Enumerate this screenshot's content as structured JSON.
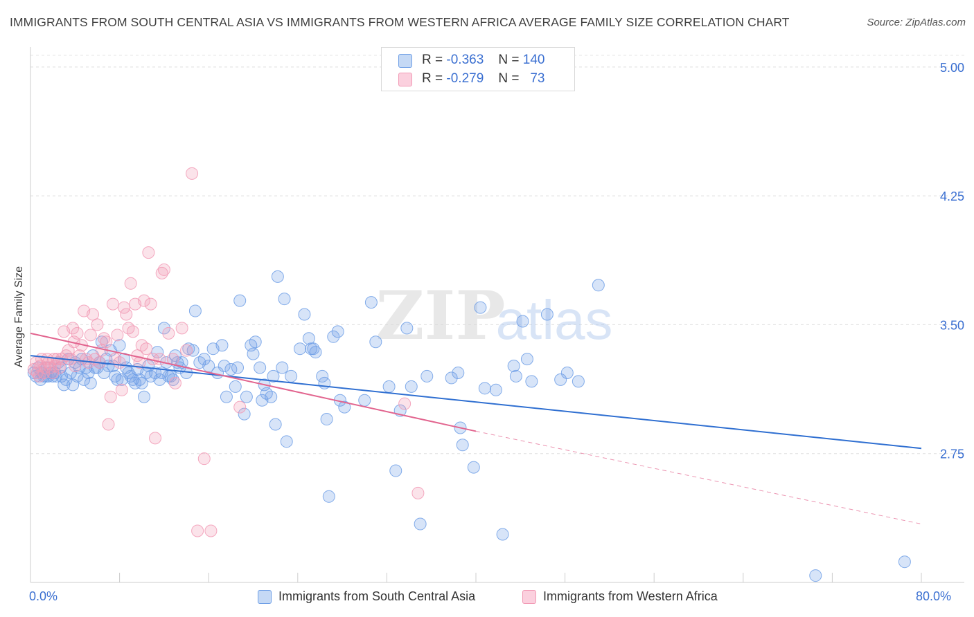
{
  "title": "IMMIGRANTS FROM SOUTH CENTRAL ASIA VS IMMIGRANTS FROM WESTERN AFRICA AVERAGE FAMILY SIZE CORRELATION CHART",
  "source": "Source: ZipAtlas.com",
  "watermark": {
    "zip": "ZIP",
    "atlas": "atlas"
  },
  "legend": {
    "rows": [
      {
        "r_label": "R =",
        "r_value": "-0.363",
        "n_label": "N =",
        "n_value": "140",
        "color": "#a9c6f0"
      },
      {
        "r_label": "R =",
        "r_value": "-0.279",
        "n_label": "N =",
        "n_value": "73",
        "color": "#f5b3c8"
      }
    ]
  },
  "chart_data": {
    "type": "scatter",
    "ylabel": "Average Family Size",
    "xlim": [
      0,
      80
    ],
    "ylim": [
      2.0,
      5.1
    ],
    "x_tick_labels": [
      "0.0%",
      "80.0%"
    ],
    "y_ticks": [
      5.0,
      4.25,
      3.5,
      2.75
    ],
    "y_tick_labels": [
      "5.00",
      "4.25",
      "3.50",
      "2.75"
    ],
    "grid": true,
    "legend_position": "top-center",
    "series": [
      {
        "name": "Immigrants from South Central Asia",
        "color": "#6f9fe6",
        "line_color": "#2f6fd1",
        "trend": {
          "x0": 0,
          "y0": 3.32,
          "x1": 80,
          "y1": 2.78
        },
        "points": [
          [
            0.3,
            3.22
          ],
          [
            0.5,
            3.2
          ],
          [
            0.7,
            3.25
          ],
          [
            0.9,
            3.18
          ],
          [
            1.0,
            3.22
          ],
          [
            1.2,
            3.2
          ],
          [
            1.4,
            3.2
          ],
          [
            1.5,
            3.25
          ],
          [
            1.6,
            3.2
          ],
          [
            1.8,
            3.22
          ],
          [
            2.0,
            3.2
          ],
          [
            2.2,
            3.22
          ],
          [
            2.3,
            3.2
          ],
          [
            2.5,
            3.28
          ],
          [
            2.7,
            3.25
          ],
          [
            2.8,
            3.2
          ],
          [
            3.0,
            3.15
          ],
          [
            3.2,
            3.18
          ],
          [
            3.4,
            3.3
          ],
          [
            3.6,
            3.22
          ],
          [
            3.8,
            3.15
          ],
          [
            4.0,
            3.28
          ],
          [
            4.2,
            3.2
          ],
          [
            4.4,
            3.25
          ],
          [
            4.6,
            3.3
          ],
          [
            4.8,
            3.18
          ],
          [
            5.0,
            3.25
          ],
          [
            5.2,
            3.22
          ],
          [
            5.4,
            3.16
          ],
          [
            5.6,
            3.32
          ],
          [
            5.8,
            3.25
          ],
          [
            6.0,
            3.25
          ],
          [
            6.2,
            3.28
          ],
          [
            6.4,
            3.4
          ],
          [
            6.6,
            3.22
          ],
          [
            6.8,
            3.3
          ],
          [
            7.0,
            3.26
          ],
          [
            7.2,
            3.35
          ],
          [
            7.4,
            3.26
          ],
          [
            7.6,
            3.2
          ],
          [
            7.8,
            3.18
          ],
          [
            8.0,
            3.38
          ],
          [
            8.2,
            3.18
          ],
          [
            8.4,
            3.3
          ],
          [
            8.6,
            3.25
          ],
          [
            8.8,
            3.22
          ],
          [
            9.0,
            3.2
          ],
          [
            9.2,
            3.18
          ],
          [
            9.4,
            3.16
          ],
          [
            9.6,
            3.24
          ],
          [
            9.8,
            3.18
          ],
          [
            10.0,
            3.16
          ],
          [
            10.2,
            3.08
          ],
          [
            10.4,
            3.22
          ],
          [
            10.6,
            3.26
          ],
          [
            10.8,
            3.2
          ],
          [
            11.2,
            3.22
          ],
          [
            11.4,
            3.34
          ],
          [
            11.6,
            3.18
          ],
          [
            11.8,
            3.22
          ],
          [
            12.0,
            3.48
          ],
          [
            12.2,
            3.28
          ],
          [
            12.4,
            3.2
          ],
          [
            12.6,
            3.2
          ],
          [
            12.8,
            3.18
          ],
          [
            13.0,
            3.32
          ],
          [
            13.2,
            3.28
          ],
          [
            13.4,
            3.25
          ],
          [
            13.6,
            3.28
          ],
          [
            14.0,
            3.22
          ],
          [
            14.2,
            3.36
          ],
          [
            14.6,
            3.35
          ],
          [
            14.8,
            3.58
          ],
          [
            15.2,
            3.28
          ],
          [
            15.6,
            3.3
          ],
          [
            16.0,
            3.26
          ],
          [
            16.4,
            3.36
          ],
          [
            16.8,
            3.22
          ],
          [
            17.2,
            3.38
          ],
          [
            17.4,
            3.26
          ],
          [
            17.6,
            3.08
          ],
          [
            18.0,
            3.24
          ],
          [
            18.4,
            3.14
          ],
          [
            18.6,
            3.25
          ],
          [
            18.8,
            3.64
          ],
          [
            19.2,
            2.98
          ],
          [
            19.4,
            3.08
          ],
          [
            19.8,
            3.38
          ],
          [
            20.0,
            3.33
          ],
          [
            20.2,
            3.4
          ],
          [
            20.6,
            3.25
          ],
          [
            20.8,
            3.06
          ],
          [
            21.0,
            3.15
          ],
          [
            21.2,
            3.1
          ],
          [
            21.6,
            3.08
          ],
          [
            21.8,
            3.2
          ],
          [
            22.0,
            2.92
          ],
          [
            22.2,
            3.78
          ],
          [
            22.6,
            3.25
          ],
          [
            22.8,
            3.65
          ],
          [
            23.0,
            2.82
          ],
          [
            23.4,
            3.2
          ],
          [
            24.2,
            3.36
          ],
          [
            24.6,
            3.56
          ],
          [
            25.0,
            3.42
          ],
          [
            25.2,
            3.36
          ],
          [
            25.4,
            3.36
          ],
          [
            25.6,
            3.34
          ],
          [
            26.2,
            3.2
          ],
          [
            26.4,
            3.16
          ],
          [
            26.6,
            2.95
          ],
          [
            26.8,
            2.5
          ],
          [
            27.2,
            3.43
          ],
          [
            27.6,
            3.46
          ],
          [
            27.8,
            3.06
          ],
          [
            28.2,
            3.02
          ],
          [
            30.0,
            3.06
          ],
          [
            30.6,
            3.63
          ],
          [
            31.0,
            3.4
          ],
          [
            32.2,
            3.14
          ],
          [
            32.8,
            2.65
          ],
          [
            33.2,
            3.0
          ],
          [
            33.8,
            3.48
          ],
          [
            34.2,
            3.14
          ],
          [
            35.0,
            2.34
          ],
          [
            35.6,
            3.2
          ],
          [
            37.8,
            3.19
          ],
          [
            38.4,
            3.22
          ],
          [
            38.6,
            2.9
          ],
          [
            38.8,
            2.8
          ],
          [
            39.8,
            2.67
          ],
          [
            40.4,
            3.6
          ],
          [
            40.8,
            3.13
          ],
          [
            41.8,
            3.12
          ],
          [
            42.4,
            2.28
          ],
          [
            43.4,
            3.26
          ],
          [
            43.6,
            3.2
          ],
          [
            44.2,
            3.52
          ],
          [
            44.6,
            3.3
          ],
          [
            45.0,
            3.17
          ],
          [
            46.4,
            3.56
          ],
          [
            47.6,
            3.18
          ],
          [
            48.2,
            3.22
          ],
          [
            49.2,
            3.17
          ],
          [
            51.0,
            3.73
          ],
          [
            70.5,
            2.04
          ],
          [
            78.5,
            2.12
          ]
        ]
      },
      {
        "name": "Immigrants from Western Africa",
        "color": "#f29ab5",
        "line_color": "#e2658f",
        "trend": {
          "x0": 0,
          "y0": 3.45,
          "x1": 40,
          "y1": 2.88
        },
        "trend_ext": {
          "x0": 40,
          "y0": 2.88,
          "x1": 80,
          "y1": 2.34
        },
        "points": [
          [
            0.3,
            3.24
          ],
          [
            0.5,
            3.28
          ],
          [
            0.6,
            3.22
          ],
          [
            0.8,
            3.2
          ],
          [
            0.9,
            3.26
          ],
          [
            1.0,
            3.3
          ],
          [
            1.2,
            3.22
          ],
          [
            1.3,
            3.25
          ],
          [
            1.5,
            3.3
          ],
          [
            1.6,
            3.28
          ],
          [
            1.8,
            3.25
          ],
          [
            2.0,
            3.22
          ],
          [
            2.1,
            3.3
          ],
          [
            2.2,
            3.26
          ],
          [
            2.4,
            3.3
          ],
          [
            2.6,
            3.25
          ],
          [
            2.8,
            3.3
          ],
          [
            3.0,
            3.46
          ],
          [
            3.2,
            3.32
          ],
          [
            3.4,
            3.35
          ],
          [
            3.6,
            3.3
          ],
          [
            3.8,
            3.48
          ],
          [
            3.9,
            3.4
          ],
          [
            4.0,
            3.26
          ],
          [
            4.2,
            3.45
          ],
          [
            4.4,
            3.32
          ],
          [
            4.6,
            3.38
          ],
          [
            4.8,
            3.58
          ],
          [
            5.0,
            3.3
          ],
          [
            5.2,
            3.28
          ],
          [
            5.4,
            3.44
          ],
          [
            5.6,
            3.56
          ],
          [
            5.8,
            3.3
          ],
          [
            6.0,
            3.5
          ],
          [
            6.2,
            3.28
          ],
          [
            6.4,
            3.35
          ],
          [
            6.6,
            3.42
          ],
          [
            6.8,
            3.4
          ],
          [
            7.0,
            2.92
          ],
          [
            7.2,
            3.08
          ],
          [
            7.4,
            3.62
          ],
          [
            7.6,
            3.3
          ],
          [
            7.8,
            3.44
          ],
          [
            8.0,
            3.28
          ],
          [
            8.2,
            3.12
          ],
          [
            8.4,
            3.6
          ],
          [
            8.6,
            3.56
          ],
          [
            8.8,
            3.48
          ],
          [
            9.0,
            3.74
          ],
          [
            9.2,
            3.46
          ],
          [
            9.4,
            3.62
          ],
          [
            9.6,
            3.32
          ],
          [
            9.8,
            3.28
          ],
          [
            10.0,
            3.38
          ],
          [
            10.2,
            3.64
          ],
          [
            10.4,
            3.36
          ],
          [
            10.6,
            3.92
          ],
          [
            10.8,
            3.62
          ],
          [
            11.0,
            3.3
          ],
          [
            11.2,
            2.84
          ],
          [
            11.6,
            3.3
          ],
          [
            11.8,
            3.8
          ],
          [
            12.0,
            3.82
          ],
          [
            12.4,
            3.45
          ],
          [
            12.8,
            3.3
          ],
          [
            13.0,
            3.16
          ],
          [
            13.6,
            3.48
          ],
          [
            14.0,
            3.35
          ],
          [
            15.0,
            2.3
          ],
          [
            15.6,
            2.72
          ],
          [
            16.2,
            2.3
          ],
          [
            18.8,
            3.02
          ],
          [
            33.6,
            3.04
          ],
          [
            34.8,
            2.52
          ],
          [
            14.5,
            4.38
          ]
        ]
      }
    ]
  }
}
